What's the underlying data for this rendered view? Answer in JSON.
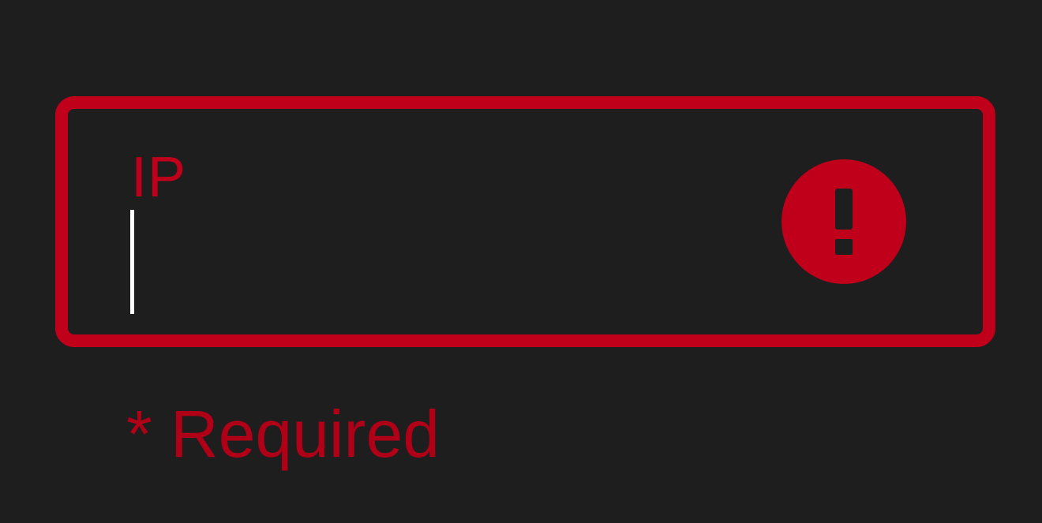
{
  "field": {
    "label": "IP",
    "value": "",
    "state": "error",
    "error_icon": "error-exclamation-icon"
  },
  "helper": {
    "text": "* Required"
  },
  "colors": {
    "background": "#1e1e1e",
    "error": "#c0001a",
    "caret": "#ffffff"
  }
}
